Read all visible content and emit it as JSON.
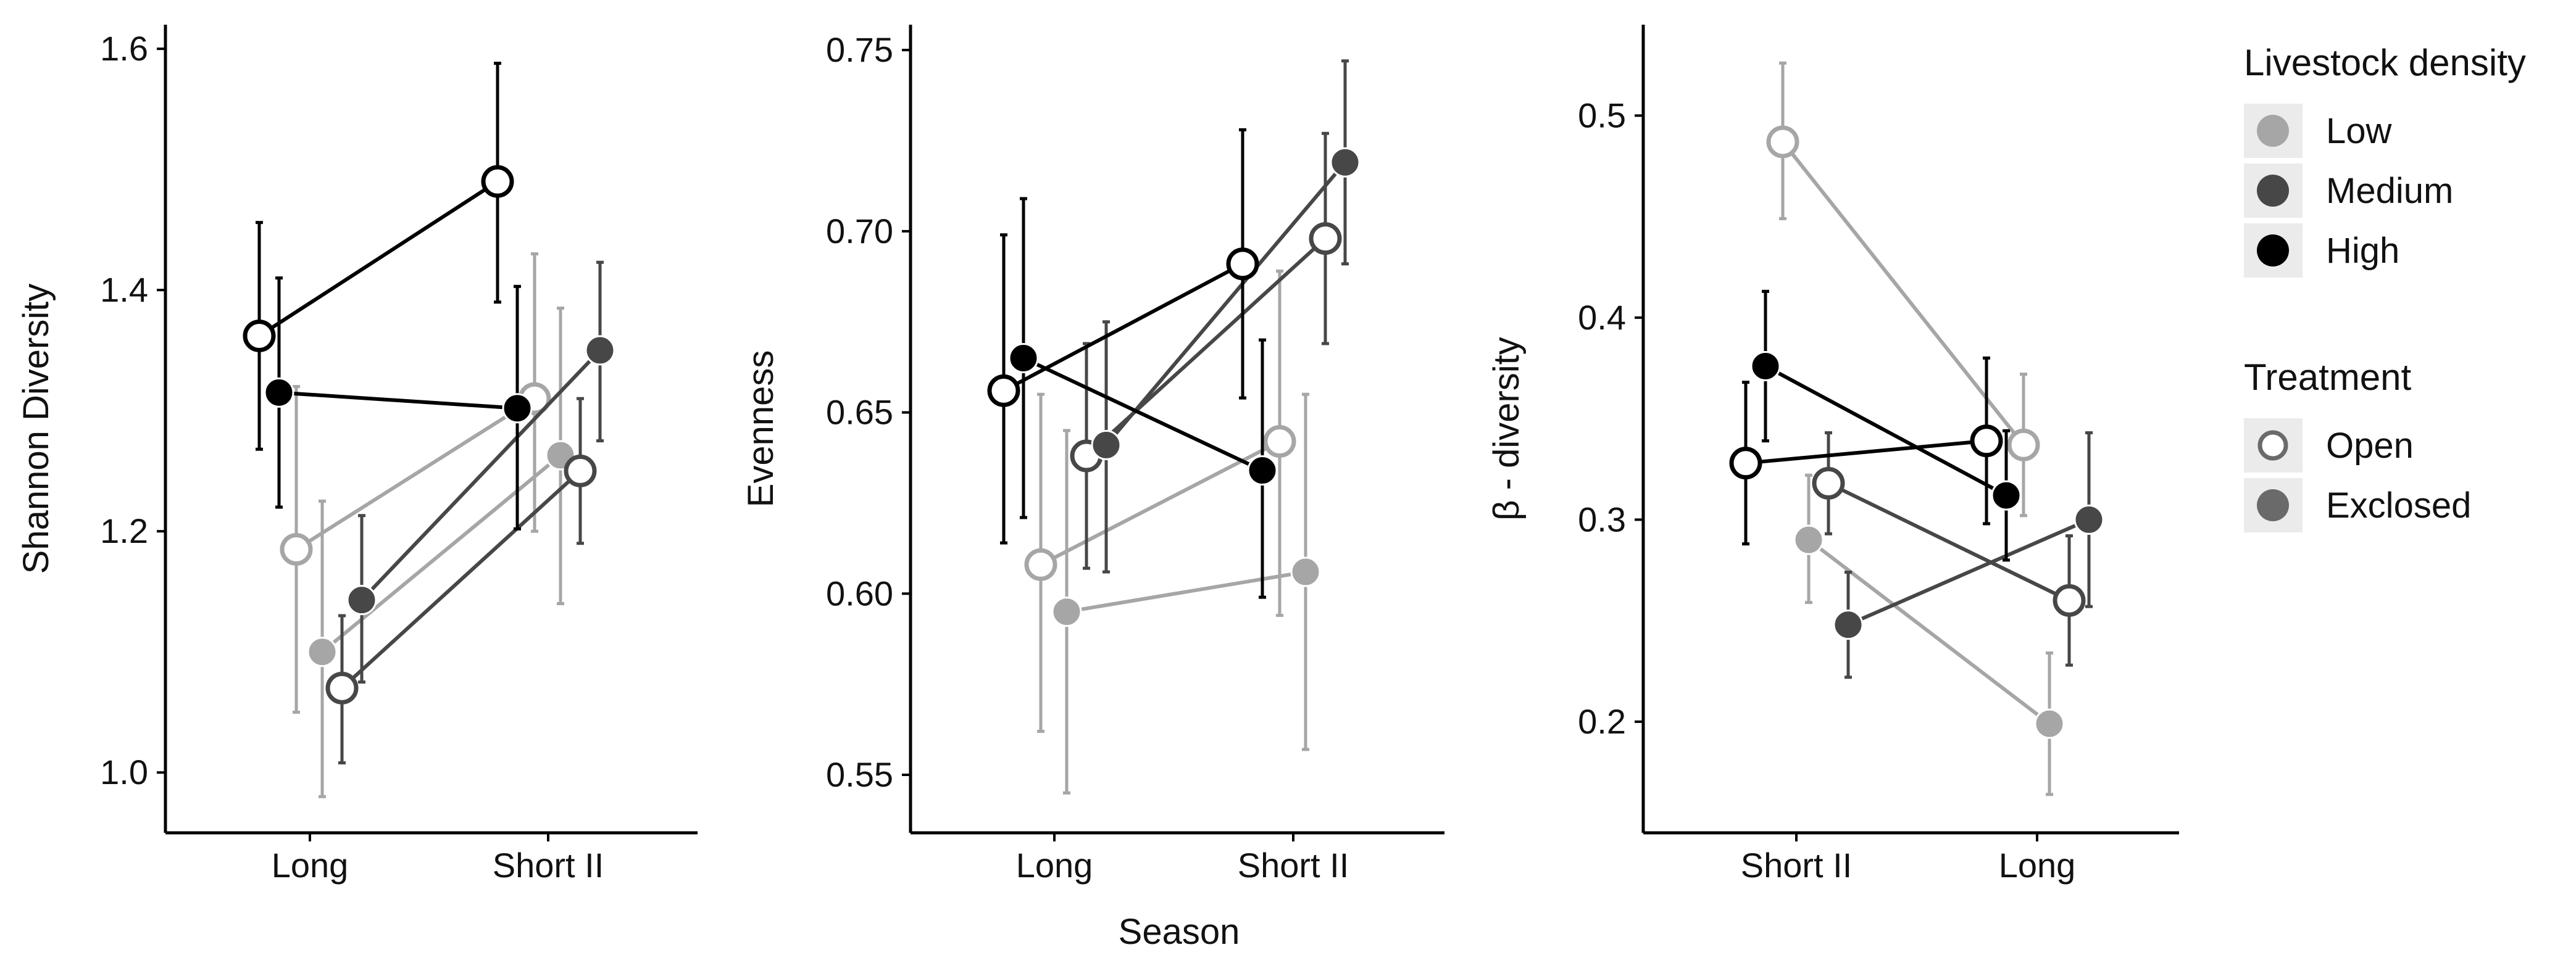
{
  "colors": {
    "Low": "#a6a6a6",
    "Medium": "#474747",
    "High": "#000000",
    "Exclosed": "#6a6a6a",
    "legend_key_bg": "#ebebeb"
  },
  "shared_xlabel": "Season",
  "chart_data": [
    {
      "type": "line",
      "ylabel": "Shannon Diversity",
      "categories": [
        "Long",
        "Short II"
      ],
      "ylim": [
        0.95,
        1.62
      ],
      "yticks": [
        "1.0",
        "1.2",
        "1.4",
        "1.6"
      ],
      "yticks_values": [
        1.0,
        1.2,
        1.4,
        1.6
      ],
      "series": [
        {
          "density": "Low",
          "treatment": "Open",
          "y": [
            1.185,
            1.31
          ],
          "err": [
            [
              1.05,
              1.32
            ],
            [
              1.2,
              1.43
            ]
          ]
        },
        {
          "density": "Low",
          "treatment": "Exclosed",
          "y": [
            1.1,
            1.263
          ],
          "err": [
            [
              0.98,
              1.225
            ],
            [
              1.14,
              1.385
            ]
          ]
        },
        {
          "density": "Medium",
          "treatment": "Open",
          "y": [
            1.07,
            1.25
          ],
          "err": [
            [
              1.008,
              1.13
            ],
            [
              1.19,
              1.31
            ]
          ]
        },
        {
          "density": "Medium",
          "treatment": "Exclosed",
          "y": [
            1.143,
            1.35
          ],
          "err": [
            [
              1.075,
              1.213
            ],
            [
              1.275,
              1.423
            ]
          ]
        },
        {
          "density": "High",
          "treatment": "Open",
          "y": [
            1.362,
            1.49
          ],
          "err": [
            [
              1.268,
              1.456
            ],
            [
              1.39,
              1.588
            ]
          ]
        },
        {
          "density": "High",
          "treatment": "Exclosed",
          "y": [
            1.315,
            1.302
          ],
          "err": [
            [
              1.22,
              1.41
            ],
            [
              1.202,
              1.403
            ]
          ]
        }
      ]
    },
    {
      "type": "line",
      "ylabel": "Evenness",
      "categories": [
        "Long",
        "Short II"
      ],
      "ylim": [
        0.534,
        0.757
      ],
      "yticks": [
        "0.55",
        "0.60",
        "0.65",
        "0.70",
        "0.75"
      ],
      "yticks_values": [
        0.55,
        0.6,
        0.65,
        0.7,
        0.75
      ],
      "series": [
        {
          "density": "Low",
          "treatment": "Open",
          "y": [
            0.608,
            0.642
          ],
          "err": [
            [
              0.562,
              0.655
            ],
            [
              0.594,
              0.689
            ]
          ]
        },
        {
          "density": "Low",
          "treatment": "Exclosed",
          "y": [
            0.595,
            0.606
          ],
          "err": [
            [
              0.545,
              0.645
            ],
            [
              0.557,
              0.655
            ]
          ]
        },
        {
          "density": "Medium",
          "treatment": "Open",
          "y": [
            0.638,
            0.698
          ],
          "err": [
            [
              0.607,
              0.669
            ],
            [
              0.669,
              0.727
            ]
          ]
        },
        {
          "density": "Medium",
          "treatment": "Exclosed",
          "y": [
            0.641,
            0.719
          ],
          "err": [
            [
              0.606,
              0.675
            ],
            [
              0.691,
              0.747
            ]
          ]
        },
        {
          "density": "High",
          "treatment": "Open",
          "y": [
            0.656,
            0.691
          ],
          "err": [
            [
              0.614,
              0.699
            ],
            [
              0.654,
              0.728
            ]
          ]
        },
        {
          "density": "High",
          "treatment": "Exclosed",
          "y": [
            0.665,
            0.634
          ],
          "err": [
            [
              0.621,
              0.709
            ],
            [
              0.599,
              0.67
            ]
          ]
        }
      ]
    },
    {
      "type": "line",
      "ylabel": "β - diversity",
      "categories": [
        "Short II",
        "Long"
      ],
      "ylim": [
        0.145,
        0.545
      ],
      "yticks": [
        "0.2",
        "0.3",
        "0.4",
        "0.5"
      ],
      "yticks_values": [
        0.2,
        0.3,
        0.4,
        0.5
      ],
      "series": [
        {
          "density": "Low",
          "treatment": "Open",
          "y": [
            0.487,
            0.337
          ],
          "err": [
            [
              0.449,
              0.526
            ],
            [
              0.302,
              0.372
            ]
          ]
        },
        {
          "density": "Low",
          "treatment": "Exclosed",
          "y": [
            0.29,
            0.199
          ],
          "err": [
            [
              0.259,
              0.322
            ],
            [
              0.164,
              0.234
            ]
          ]
        },
        {
          "density": "Medium",
          "treatment": "Open",
          "y": [
            0.318,
            0.26
          ],
          "err": [
            [
              0.293,
              0.343
            ],
            [
              0.228,
              0.292
            ]
          ]
        },
        {
          "density": "Medium",
          "treatment": "Exclosed",
          "y": [
            0.248,
            0.3
          ],
          "err": [
            [
              0.222,
              0.274
            ],
            [
              0.257,
              0.343
            ]
          ]
        },
        {
          "density": "High",
          "treatment": "Open",
          "y": [
            0.328,
            0.339
          ],
          "err": [
            [
              0.288,
              0.368
            ],
            [
              0.298,
              0.38
            ]
          ]
        },
        {
          "density": "High",
          "treatment": "Exclosed",
          "y": [
            0.376,
            0.312
          ],
          "err": [
            [
              0.339,
              0.413
            ],
            [
              0.28,
              0.344
            ]
          ]
        }
      ]
    }
  ],
  "legend": {
    "density_title": "Livestock density",
    "density_items": [
      "Low",
      "Medium",
      "High"
    ],
    "treatment_title": "Treatment",
    "treatment_items": [
      "Open",
      "Exclosed"
    ]
  }
}
